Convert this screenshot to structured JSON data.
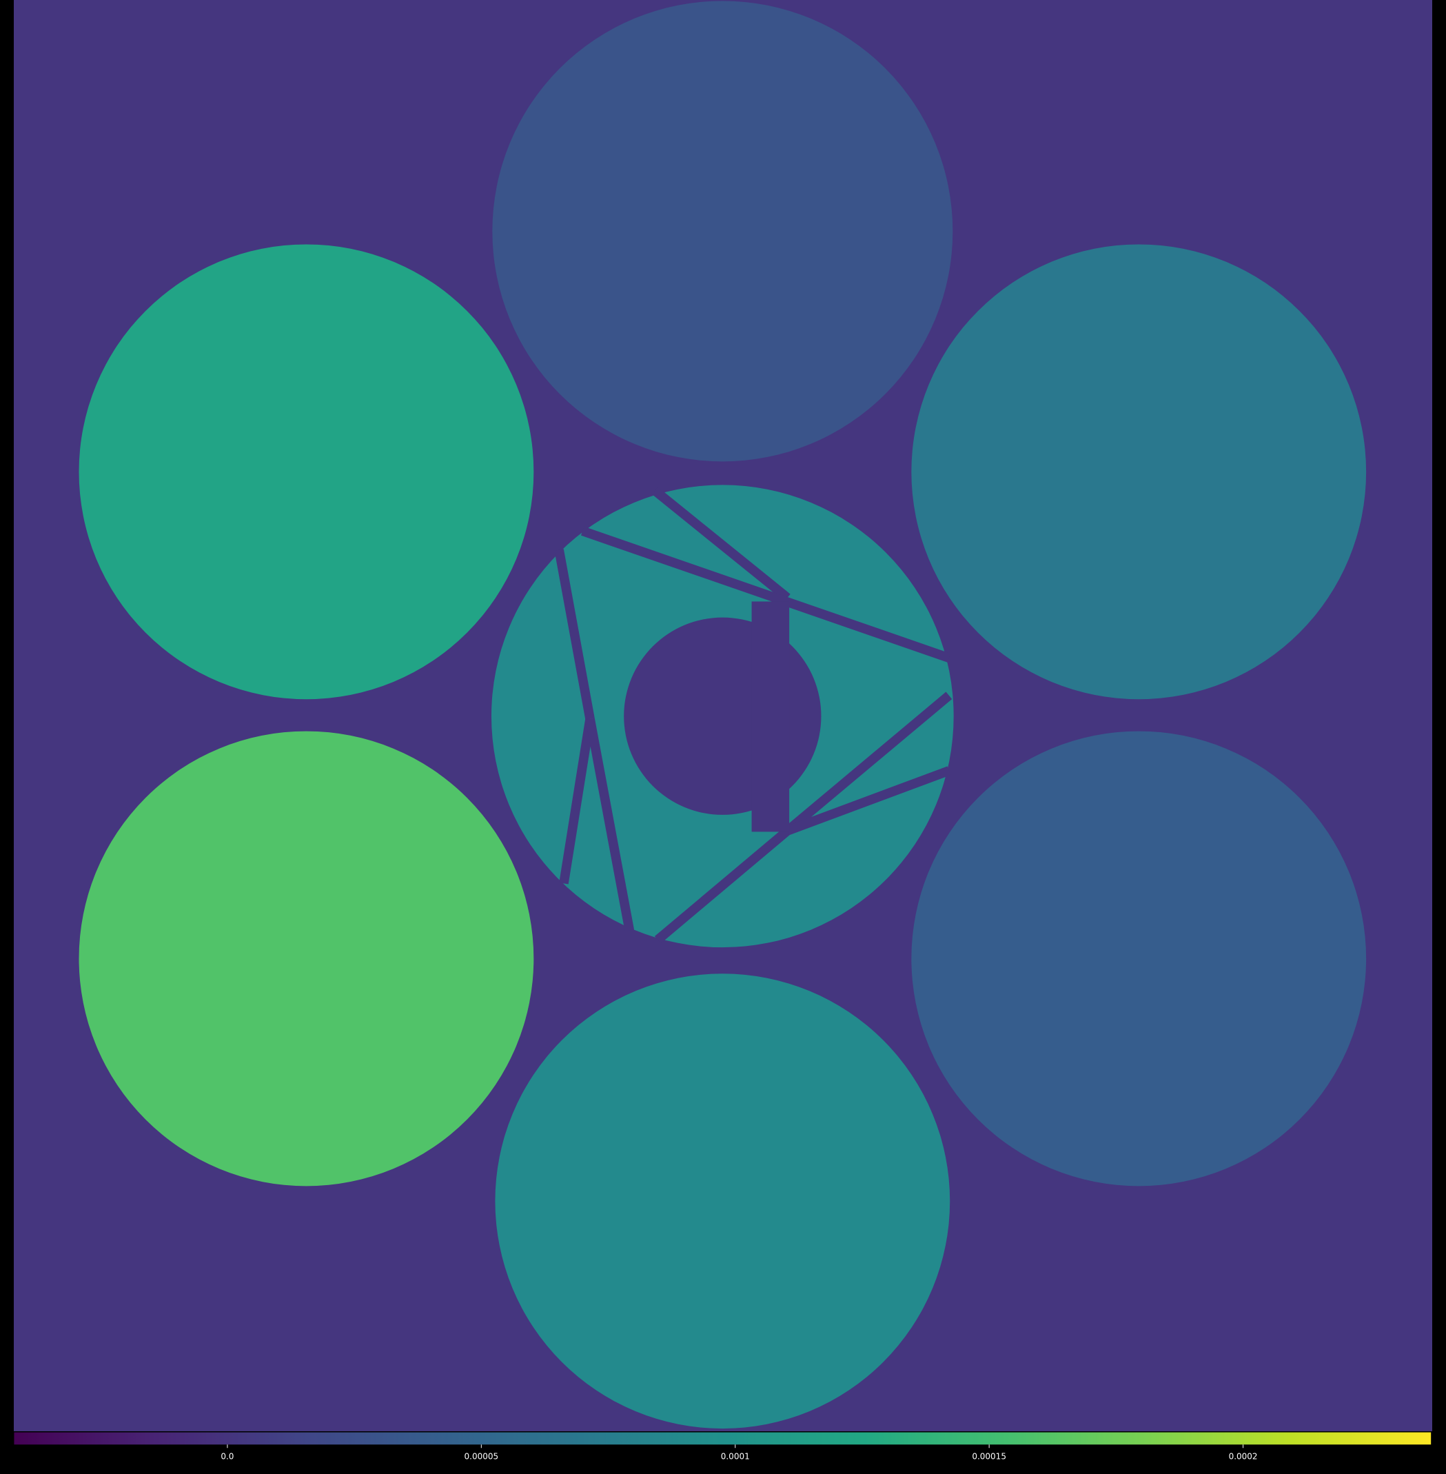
{
  "chart_data": {
    "type": "segmented-pupil-map",
    "segments": [
      {
        "value": 3e-05
      },
      {
        "value": 0.00012
      },
      {
        "value": 7e-05
      },
      {
        "value": 9e-05
      },
      {
        "value": 0.00016
      },
      {
        "value": 4e-05
      },
      {
        "value": 9e-05
      }
    ],
    "clim": [
      -4.2e-05,
      0.000237
    ],
    "cticks": [
      {
        "value": 0,
        "label": "0.0"
      },
      5e-05,
      0.0001,
      0.00015,
      0.0002
    ],
    "colormap": "viridis"
  }
}
